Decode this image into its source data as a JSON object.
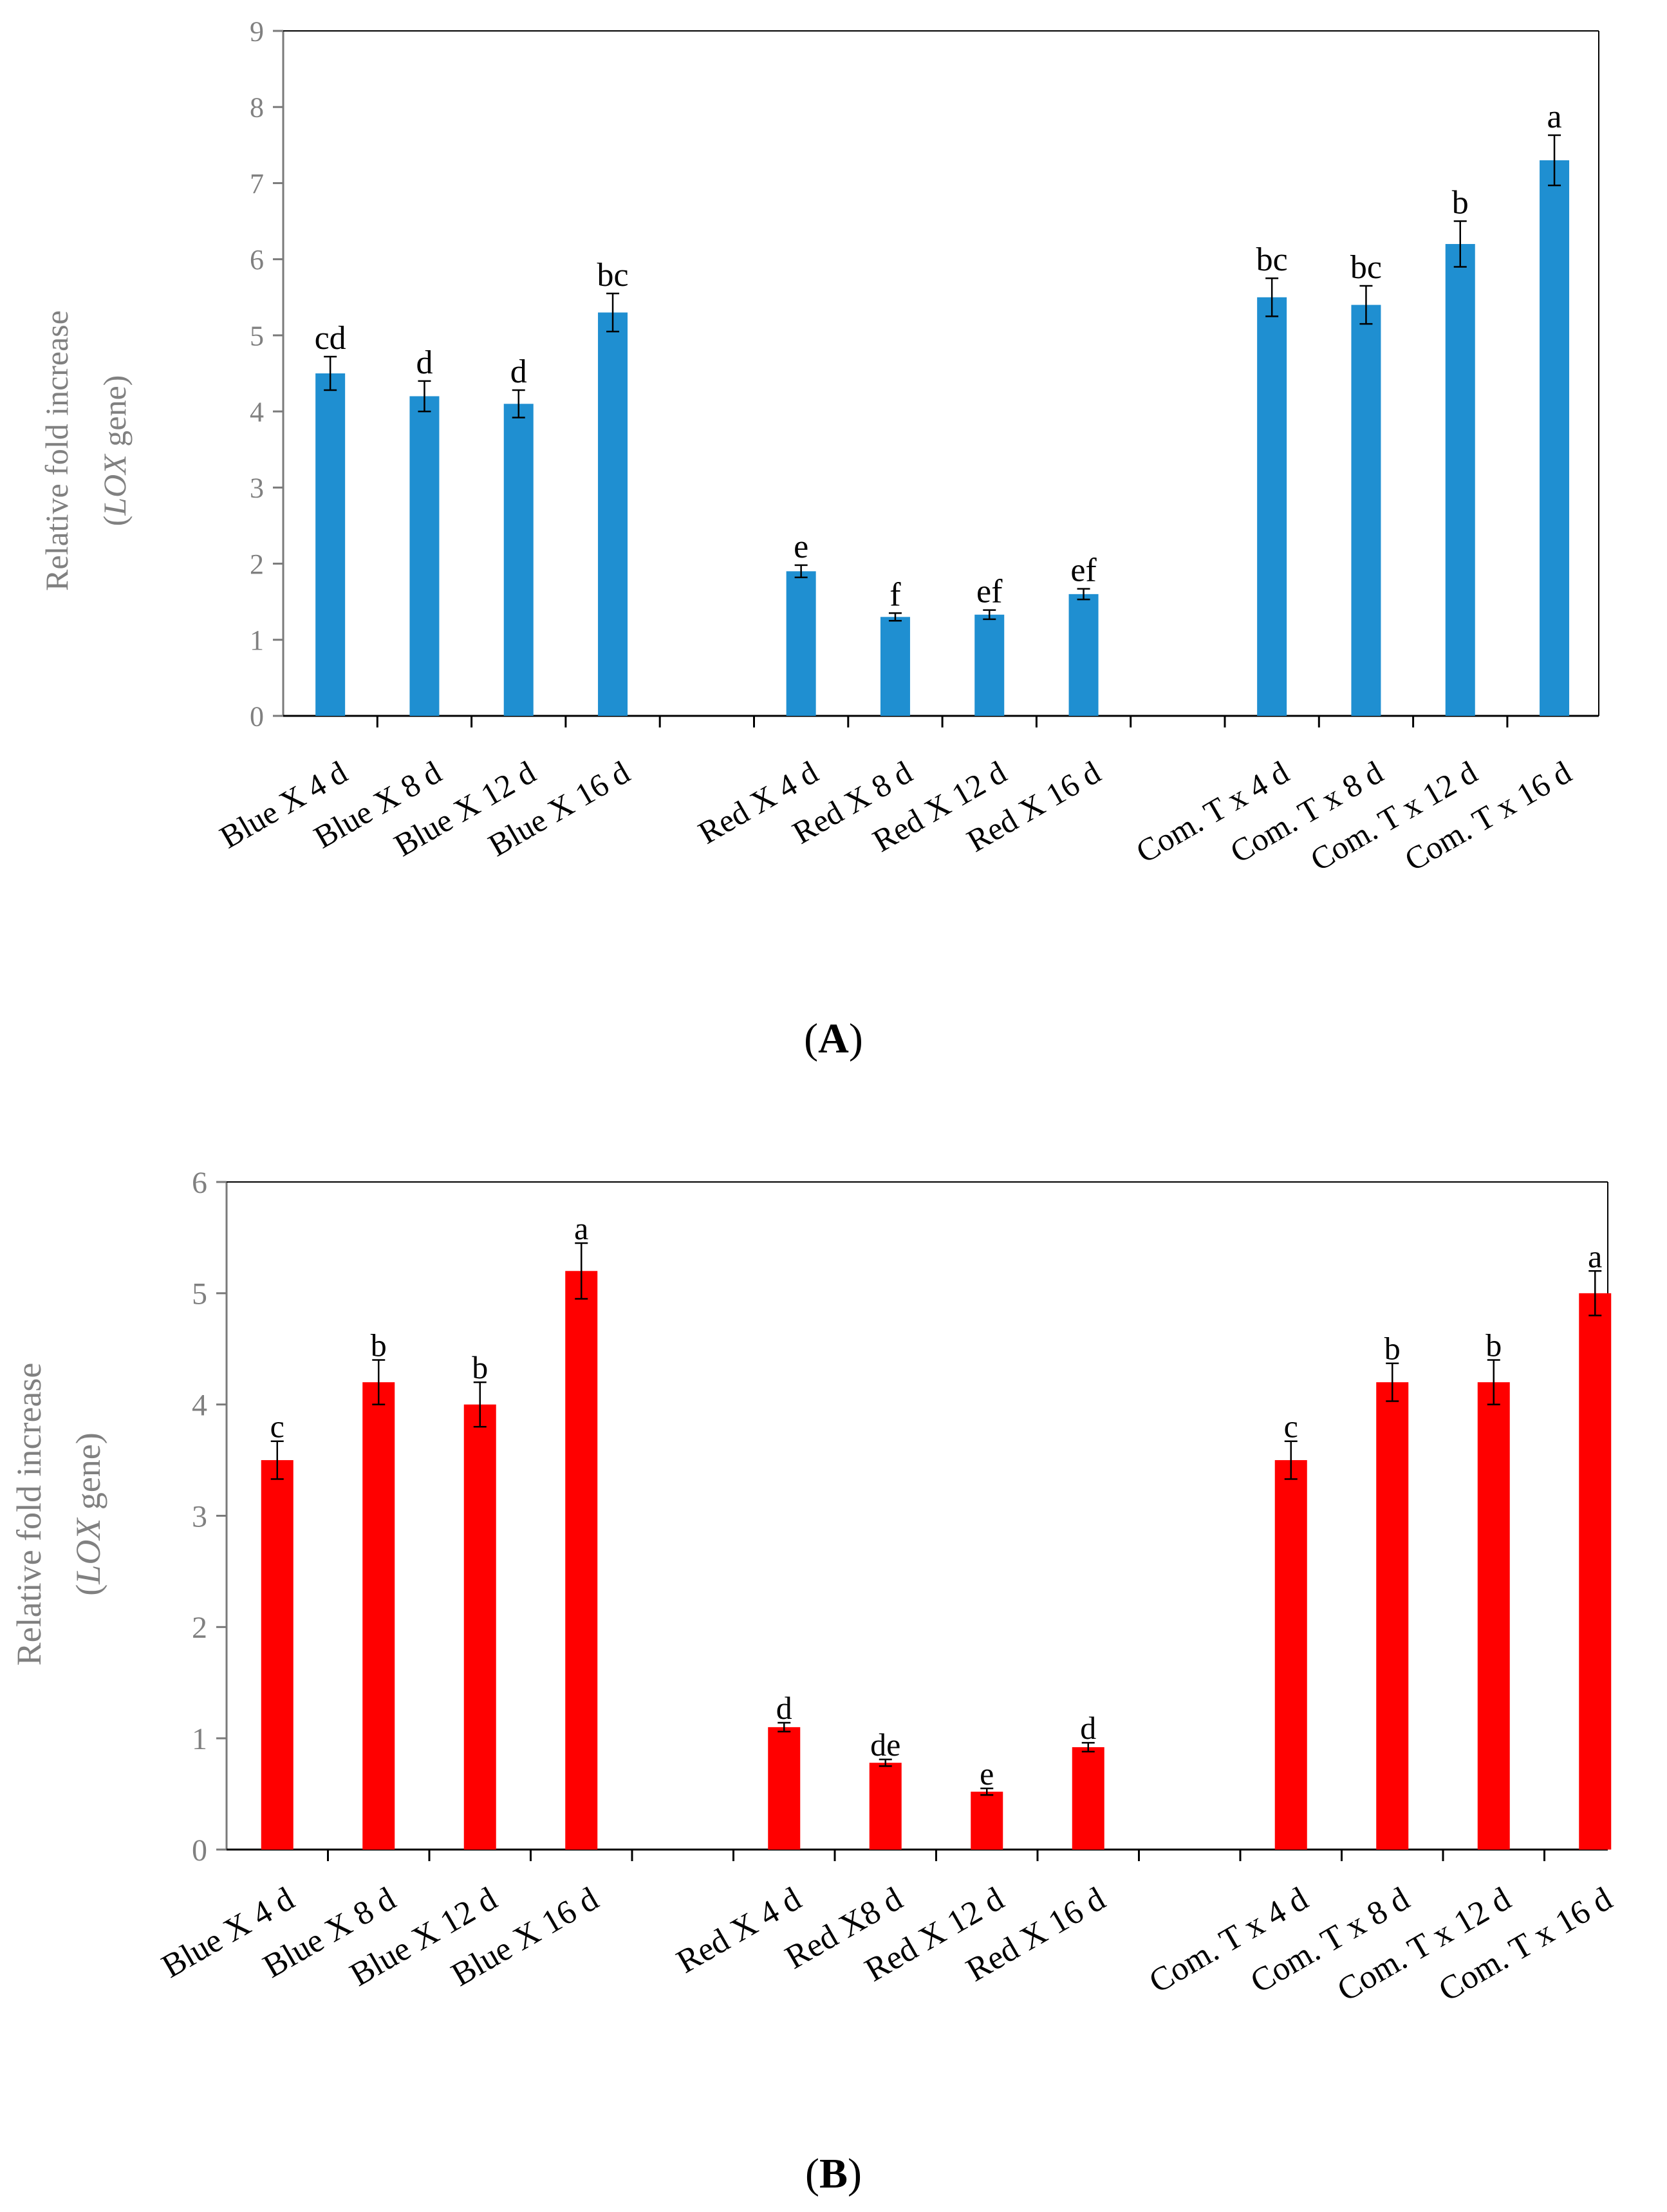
{
  "chart_data": [
    {
      "type": "bar",
      "panel_label": "A",
      "ylabel_line1": "Relative fold increase",
      "ylabel_gene": "LOX",
      "ylabel_open": "(",
      "ylabel_rest": " gene)",
      "ylim": [
        0,
        9
      ],
      "yticks": [
        "0",
        "1",
        "2",
        "3",
        "4",
        "5",
        "6",
        "7",
        "8",
        "9"
      ],
      "color": "#1f8fd1",
      "categories": [
        "Blue X 4 d",
        "Blue X 8 d",
        "Blue X 12 d",
        "Blue X 16 d",
        "",
        "Red X 4 d",
        "Red X 8 d",
        "Red X 12 d",
        "Red X  16 d",
        "",
        "Com. T x 4 d",
        "Com. T x 8 d",
        "Com. T x 12 d",
        "Com. T x 16 d"
      ],
      "values": [
        4.5,
        4.2,
        4.1,
        5.3,
        null,
        1.9,
        1.3,
        1.33,
        1.6,
        null,
        5.5,
        5.4,
        6.2,
        7.3
      ],
      "errors": [
        0.22,
        0.2,
        0.18,
        0.25,
        null,
        0.08,
        0.05,
        0.06,
        0.07,
        null,
        0.25,
        0.25,
        0.3,
        0.33
      ],
      "labels": [
        "cd",
        "d",
        "d",
        "bc",
        "",
        "e",
        "f",
        "ef",
        "ef",
        "",
        "bc",
        "bc",
        "b",
        "a"
      ]
    },
    {
      "type": "bar",
      "panel_label": "B",
      "ylabel_line1": "Relative fold increase",
      "ylabel_gene": "LOX",
      "ylabel_open": "(",
      "ylabel_rest": " gene)",
      "ylim": [
        0,
        6
      ],
      "yticks": [
        "0",
        "1",
        "2",
        "3",
        "4",
        "5",
        "6"
      ],
      "color": "#ff0000",
      "categories": [
        "Blue X 4 d",
        "Blue X 8 d",
        "Blue X 12 d",
        "Blue X 16 d",
        "",
        "Red X 4 d",
        "Red X8 d",
        "Red X 12 d",
        "Red X  16 d",
        "",
        "Com. T  x 4 d",
        "Com.  T  x 8 d",
        "Com.  T x 12 d",
        "Com. T x 16 d"
      ],
      "values": [
        3.5,
        4.2,
        4.0,
        5.2,
        null,
        1.1,
        0.78,
        0.52,
        0.92,
        null,
        3.5,
        4.2,
        4.2,
        5.0
      ],
      "errors": [
        0.17,
        0.2,
        0.2,
        0.25,
        null,
        0.04,
        0.03,
        0.03,
        0.04,
        null,
        0.17,
        0.17,
        0.2,
        0.2
      ],
      "labels": [
        "c",
        "b",
        "b",
        "a",
        "",
        "d",
        "de",
        "e",
        "d",
        "",
        "c",
        "b",
        "b",
        "a"
      ]
    }
  ]
}
